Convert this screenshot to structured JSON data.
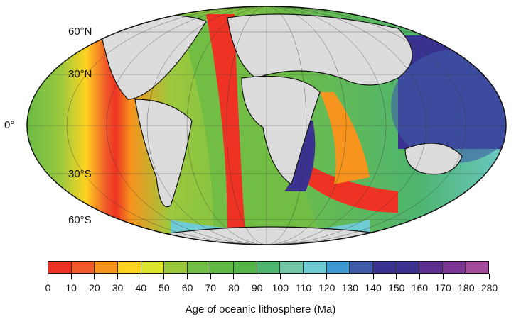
{
  "map": {
    "projection": "mollweide",
    "land_color": "#dcdcdc",
    "continental_margin_color": "#7a7a7a",
    "latitude_labels": [
      "60°N",
      "30°N",
      "0°",
      "30°S",
      "60°S"
    ]
  },
  "colorbar": {
    "title": "Age of oceanic lithosphere (Ma)",
    "ticks": [
      "0",
      "10",
      "20",
      "30",
      "40",
      "50",
      "60",
      "70",
      "80",
      "90",
      "100",
      "110",
      "120",
      "130",
      "140",
      "150",
      "160",
      "170",
      "180",
      "280"
    ],
    "colors": [
      "#ee3324",
      "#f15a29",
      "#f7941d",
      "#ffd320",
      "#dde42c",
      "#9bc93e",
      "#72bd44",
      "#62b946",
      "#56b549",
      "#4eb56f",
      "#74c7a6",
      "#6fcbd3",
      "#3f9ad4",
      "#3f5ca8",
      "#3a3290",
      "#3a3190",
      "#5d2f8e",
      "#7b3592",
      "#a24c9b"
    ]
  }
}
